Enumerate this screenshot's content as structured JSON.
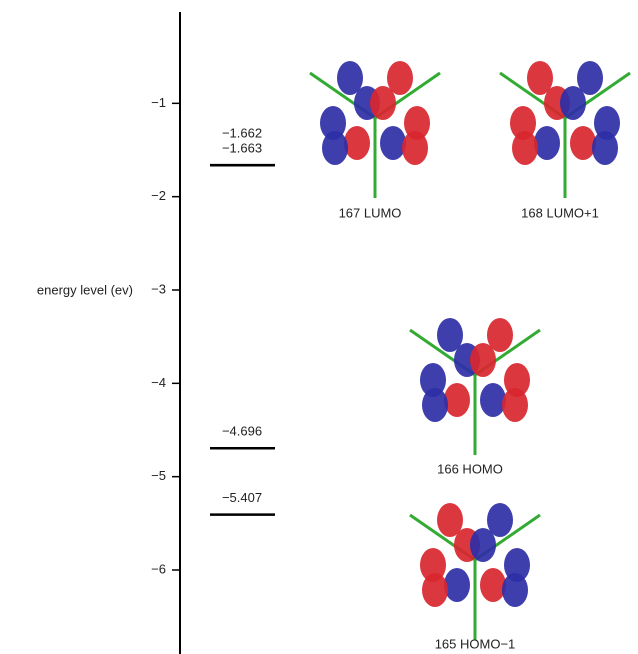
{
  "chart_data": {
    "type": "energy-levels",
    "y_label": "energy level (ev)",
    "ylim": [
      -6.9,
      0
    ],
    "yticks": [
      {
        "value": -1,
        "label": "−1"
      },
      {
        "value": -2,
        "label": "−2"
      },
      {
        "value": -3,
        "label": "−3"
      },
      {
        "value": -4,
        "label": "−4"
      },
      {
        "value": -5,
        "label": "−5"
      },
      {
        "value": -6,
        "label": "−6"
      }
    ],
    "values": [
      -1.662,
      -1.663,
      -4.696,
      -5.407
    ],
    "value_labels": [
      "−1.662",
      "−1.663",
      "−4.696",
      "−5.407"
    ],
    "color": "#000000",
    "orbitals": [
      "167 LUMO",
      "168 LUMO+1",
      "166 HOMO",
      "165 HOMO−1"
    ]
  }
}
